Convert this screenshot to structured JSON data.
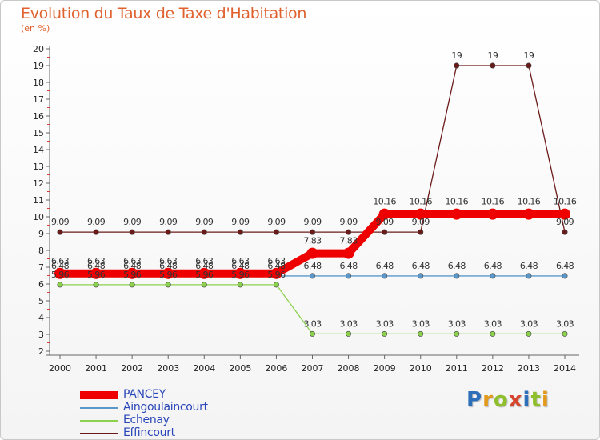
{
  "header": {
    "title": "Evolution du Taux de Taxe d'Habitation",
    "unit": "(en %)"
  },
  "logo": {
    "text": "Proxiti"
  },
  "chart_data": {
    "type": "line",
    "title": "Evolution du Taux de Taxe d'Habitation",
    "ylabel": "(en %)",
    "xlabel": "",
    "ylim": [
      2,
      20
    ],
    "yticks": [
      2,
      3,
      4,
      5,
      6,
      7,
      8,
      9,
      10,
      11,
      12,
      13,
      14,
      15,
      16,
      17,
      18,
      19,
      20
    ],
    "grid": false,
    "legend_position": "bottom-left",
    "x": [
      "2000",
      "2001",
      "2002",
      "2003",
      "2004",
      "2005",
      "2006",
      "2007",
      "2008",
      "2009",
      "2010",
      "2011",
      "2012",
      "2013",
      "2014"
    ],
    "series": [
      {
        "name": "Effincourt",
        "color": "#6b1a1a",
        "values": [
          9.09,
          9.09,
          9.09,
          9.09,
          9.09,
          9.09,
          9.09,
          9.09,
          9.09,
          9.09,
          9.09,
          19,
          19,
          19,
          9.09
        ],
        "labels": [
          "9.09",
          "9.09",
          "9.09",
          "9.09",
          "9.09",
          "9.09",
          "9.09",
          "9.09",
          "9.09",
          "9.09",
          "9.09",
          "19",
          "19",
          "19",
          "9.09"
        ]
      },
      {
        "name": "Echenay",
        "color": "#8cd14e",
        "values": [
          5.96,
          5.96,
          5.96,
          5.96,
          5.96,
          5.96,
          5.96,
          3.03,
          3.03,
          3.03,
          3.03,
          3.03,
          3.03,
          3.03,
          3.03
        ],
        "labels": [
          "5.96",
          "5.96",
          "5.96",
          "5.96",
          "5.96",
          "5.96",
          "5.96",
          "3.03",
          "3.03",
          "3.03",
          "3.03",
          "3.03",
          "3.03",
          "3.03",
          "3.03"
        ]
      },
      {
        "name": "Aingoulaincourt",
        "color": "#5b97c9",
        "values": [
          6.48,
          6.48,
          6.48,
          6.48,
          6.48,
          6.48,
          6.48,
          6.48,
          6.48,
          6.48,
          6.48,
          6.48,
          6.48,
          6.48,
          6.48
        ],
        "labels": [
          "6.48",
          "6.48",
          "6.48",
          "6.48",
          "6.48",
          "6.48",
          "6.48",
          "6.48",
          "6.48",
          "6.48",
          "6.48",
          "6.48",
          "6.48",
          "6.48",
          "6.48"
        ]
      },
      {
        "name": "PANCEY",
        "color": "#ee0000",
        "values": [
          6.63,
          6.63,
          6.63,
          6.63,
          6.63,
          6.63,
          6.63,
          7.83,
          7.83,
          10.16,
          10.16,
          10.16,
          10.16,
          10.16,
          10.16
        ],
        "labels": [
          "6.63",
          "6.63",
          "6.63",
          "6.63",
          "6.63",
          "6.63",
          "6.63",
          "7.83",
          "7.83",
          "10.16",
          "10.16",
          "10.16",
          "10.16",
          "10.16",
          "10.16"
        ]
      }
    ],
    "legend": [
      "PANCEY",
      "Aingoulaincourt",
      "Echenay",
      "Effincourt"
    ]
  }
}
